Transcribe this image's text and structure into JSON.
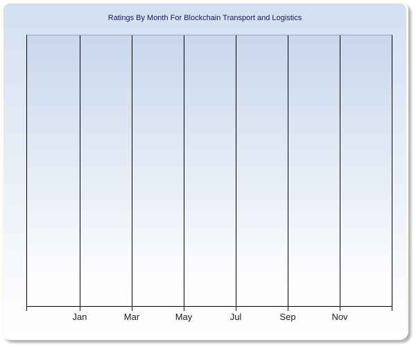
{
  "page": {
    "background": "#ffffff"
  },
  "chart_data": {
    "type": "line",
    "title": "Ratings By Month For Blockchain Transport and Logistics",
    "xlabel": "",
    "ylabel": "",
    "x_tick_labels": [
      "Jan",
      "Mar",
      "May",
      "Jul",
      "Sep",
      "Nov"
    ],
    "y_tick_labels": [],
    "series": [],
    "legend": "none",
    "grid": "vertical gridlines only, one at each labeled month tick",
    "plot_state": "empty plot area - no data points, lines or bars rendered; no y-axis ticks or labels visible"
  },
  "colors": {
    "panel_gradient_top": "#d3dff1",
    "panel_gradient_bottom": "#ffffff",
    "panel_border": "#fbfaf3",
    "panel_shadow": "rgba(130,130,130,0.6)",
    "plot_gradient_top": "#c8d7ec",
    "plot_gradient_bottom": "#fefeff",
    "plot_top_border": "#9aa3b8",
    "axis_color": "#000000",
    "gridline_color": "#000000",
    "title_color": "#17174e",
    "label_color": "#1c1c1c"
  }
}
